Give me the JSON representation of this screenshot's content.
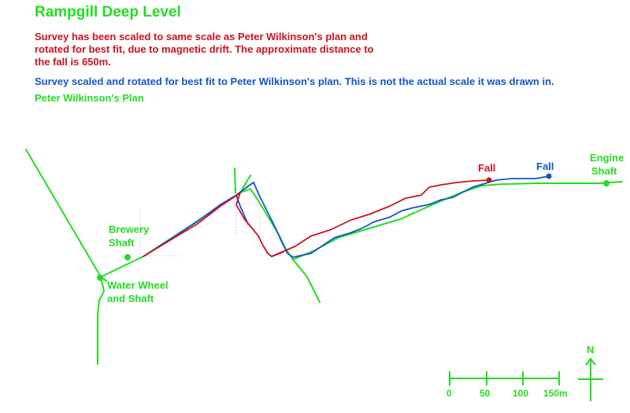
{
  "title": "Rampgill Deep Level",
  "notes": {
    "red": "Survey has been scaled to same scale as Peter Wilkinson's plan and rotated for best fit, due to magnetic drift. The approximate distance to the fall is 650m.",
    "blue": "Survey scaled and rotated for best fit to Peter Wilkinson's plan. This is not the actual scale it was drawn in.",
    "green": "Peter Wilkinson's Plan"
  },
  "colors": {
    "red_survey": "#cc1122",
    "blue_survey": "#1155cc",
    "green_plan": "#22dd22"
  },
  "labels": {
    "brewery_shaft_line1": "Brewery",
    "brewery_shaft_line2": "Shaft",
    "water_wheel_line1": "Water Wheel",
    "water_wheel_line2": "and Shaft",
    "fall_red": "Fall",
    "fall_blue": "Fall",
    "engine_shaft_line1": "Engine",
    "engine_shaft_line2": "Shaft",
    "north": "N"
  },
  "scale_bar": {
    "ticks": [
      "0",
      "50",
      "100",
      "150m"
    ]
  }
}
